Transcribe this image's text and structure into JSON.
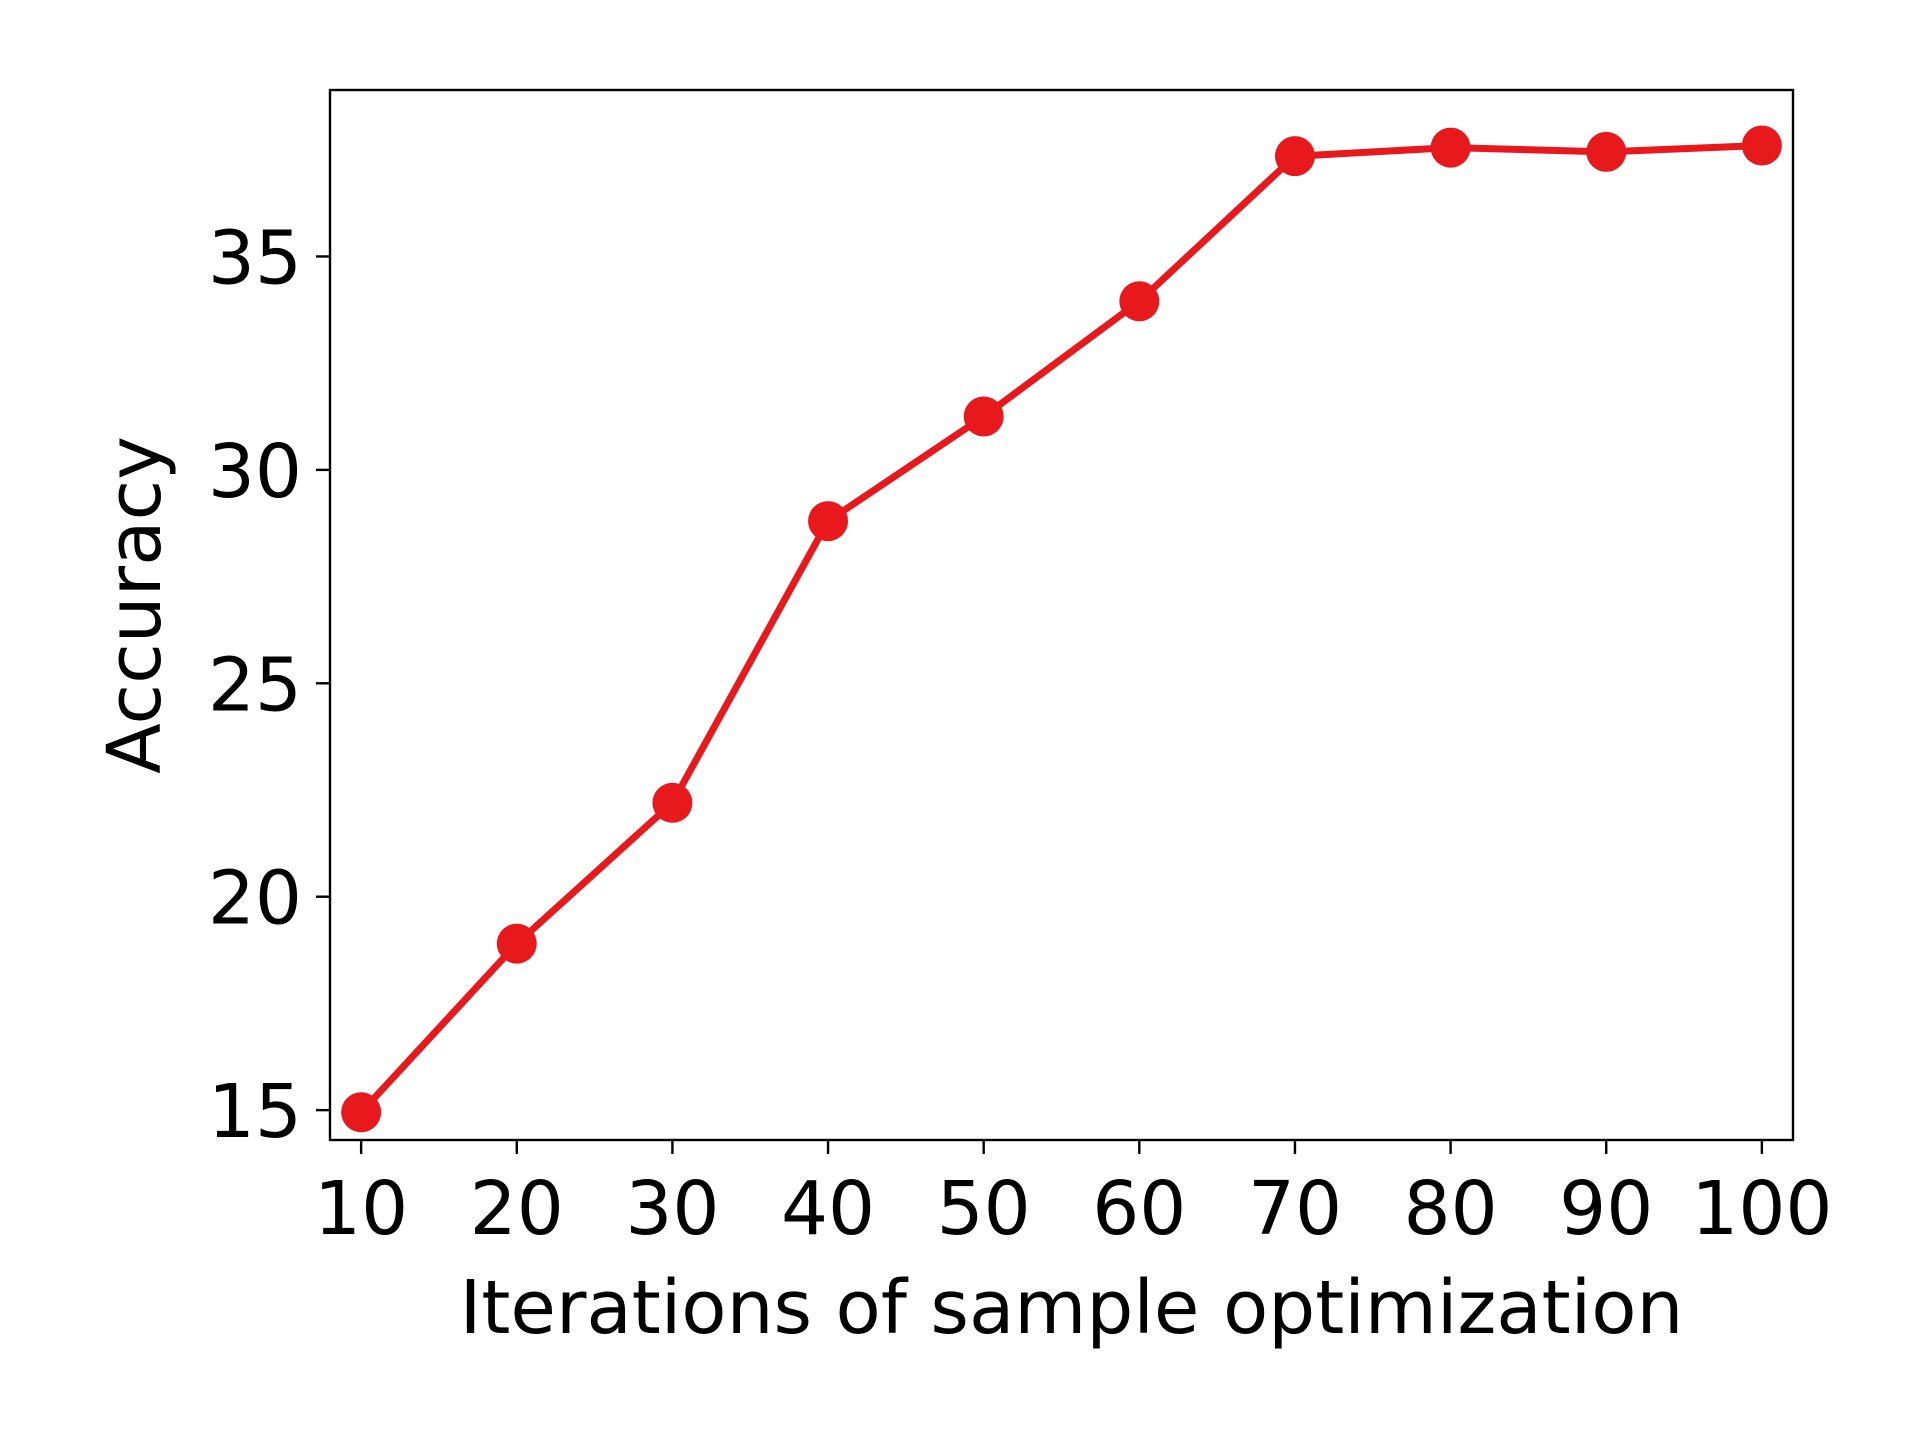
{
  "chart_data": {
    "type": "line",
    "title": "",
    "xlabel": "Iterations of sample optimization",
    "ylabel": "Accuracy",
    "x": [
      10,
      20,
      30,
      40,
      50,
      60,
      70,
      80,
      90,
      100
    ],
    "xticks": [
      10,
      20,
      30,
      40,
      50,
      60,
      70,
      80,
      90,
      100
    ],
    "yticks": [
      15,
      20,
      25,
      30,
      35
    ],
    "xlim": [
      8,
      102
    ],
    "ylim": [
      14.3,
      38.9
    ],
    "grid": false,
    "series": [
      {
        "name": "",
        "color": "#e8191c",
        "marker": "circle",
        "values": [
          14.95,
          18.9,
          22.2,
          28.8,
          31.25,
          33.95,
          37.35,
          37.55,
          37.45,
          37.6
        ]
      }
    ]
  }
}
